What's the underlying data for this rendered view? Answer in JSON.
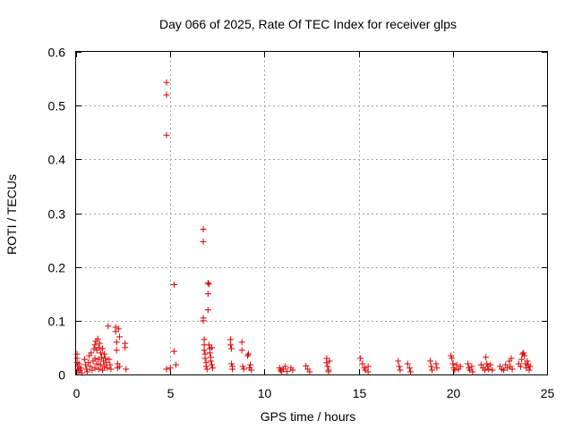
{
  "chart_data": {
    "type": "scatter",
    "title": "Day 066 of 2025, Rate Of TEC Index for receiver glps",
    "xlabel": "GPS time / hours",
    "ylabel": "ROTI / TECUs",
    "xlim": [
      0,
      25
    ],
    "ylim": [
      0,
      0.6
    ],
    "xticks": [
      0,
      5,
      10,
      15,
      20,
      25
    ],
    "xtick_labels": [
      "0",
      "5",
      "10",
      "15",
      "20",
      "25"
    ],
    "yticks": [
      0,
      0.1,
      0.2,
      0.3,
      0.4,
      0.5,
      0.6
    ],
    "ytick_labels": [
      "0",
      "0.1",
      "0.2",
      "0.3",
      "0.4",
      "0.5",
      "0.6"
    ],
    "grid": true,
    "marker": "plus",
    "color": "#dd0000",
    "series": [
      {
        "points": [
          [
            0.05,
            0.038
          ],
          [
            0.05,
            0.03
          ],
          [
            0.05,
            0.022
          ],
          [
            0.08,
            0.015
          ],
          [
            0.1,
            0.01
          ],
          [
            0.1,
            0.005
          ],
          [
            0.15,
            0.02
          ],
          [
            0.2,
            0.008
          ],
          [
            0.25,
            0.012
          ],
          [
            0.3,
            0.003
          ],
          [
            0.45,
            0.028
          ],
          [
            0.5,
            0.018
          ],
          [
            0.55,
            0.01
          ],
          [
            0.6,
            0.005
          ],
          [
            0.65,
            0.022
          ],
          [
            0.7,
            0.035
          ],
          [
            0.75,
            0.015
          ],
          [
            0.8,
            0.04
          ],
          [
            0.85,
            0.008
          ],
          [
            0.9,
            0.025
          ],
          [
            0.95,
            0.048
          ],
          [
            1.0,
            0.055
          ],
          [
            1.0,
            0.03
          ],
          [
            1.0,
            0.012
          ],
          [
            1.05,
            0.062
          ],
          [
            1.1,
            0.045
          ],
          [
            1.1,
            0.02
          ],
          [
            1.15,
            0.066
          ],
          [
            1.2,
            0.05
          ],
          [
            1.2,
            0.028
          ],
          [
            1.2,
            0.01
          ],
          [
            1.25,
            0.058
          ],
          [
            1.3,
            0.04
          ],
          [
            1.3,
            0.018
          ],
          [
            1.35,
            0.032
          ],
          [
            1.4,
            0.048
          ],
          [
            1.4,
            0.008
          ],
          [
            1.45,
            0.025
          ],
          [
            1.5,
            0.038
          ],
          [
            1.5,
            0.015
          ],
          [
            1.55,
            0.03
          ],
          [
            1.6,
            0.022
          ],
          [
            1.65,
            0.012
          ],
          [
            1.7,
            0.09
          ],
          [
            1.75,
            0.028
          ],
          [
            1.8,
            0.018
          ],
          [
            1.85,
            0.01
          ],
          [
            2.1,
            0.088
          ],
          [
            2.1,
            0.08
          ],
          [
            2.15,
            0.06
          ],
          [
            2.15,
            0.045
          ],
          [
            2.2,
            0.02
          ],
          [
            2.2,
            0.012
          ],
          [
            2.25,
            0.085
          ],
          [
            2.3,
            0.07
          ],
          [
            2.3,
            0.015
          ],
          [
            2.6,
            0.058
          ],
          [
            2.6,
            0.05
          ],
          [
            2.65,
            0.01
          ],
          [
            4.8,
            0.543
          ],
          [
            4.8,
            0.52
          ],
          [
            4.8,
            0.445
          ],
          [
            4.8,
            0.01
          ],
          [
            5.0,
            0.012
          ],
          [
            5.2,
            0.167
          ],
          [
            5.2,
            0.043
          ],
          [
            5.3,
            0.018
          ],
          [
            6.75,
            0.27
          ],
          [
            6.75,
            0.247
          ],
          [
            6.75,
            0.105
          ],
          [
            6.75,
            0.1
          ],
          [
            6.8,
            0.065
          ],
          [
            6.8,
            0.055
          ],
          [
            6.8,
            0.045
          ],
          [
            6.85,
            0.038
          ],
          [
            6.85,
            0.03
          ],
          [
            6.9,
            0.022
          ],
          [
            6.9,
            0.015
          ],
          [
            6.95,
            0.01
          ],
          [
            7.0,
            0.17
          ],
          [
            7.0,
            0.15
          ],
          [
            7.0,
            0.12
          ],
          [
            7.05,
            0.168
          ],
          [
            7.05,
            0.055
          ],
          [
            7.1,
            0.048
          ],
          [
            7.1,
            0.04
          ],
          [
            7.15,
            0.032
          ],
          [
            7.15,
            0.025
          ],
          [
            7.2,
            0.05
          ],
          [
            7.2,
            0.018
          ],
          [
            7.25,
            0.012
          ],
          [
            8.2,
            0.065
          ],
          [
            8.2,
            0.055
          ],
          [
            8.25,
            0.048
          ],
          [
            8.25,
            0.02
          ],
          [
            8.3,
            0.015
          ],
          [
            8.3,
            0.01
          ],
          [
            8.8,
            0.06
          ],
          [
            8.8,
            0.045
          ],
          [
            8.85,
            0.015
          ],
          [
            8.9,
            0.01
          ],
          [
            9.1,
            0.035
          ],
          [
            9.15,
            0.038
          ],
          [
            9.2,
            0.012
          ],
          [
            9.25,
            0.018
          ],
          [
            9.3,
            0.008
          ],
          [
            10.8,
            0.012
          ],
          [
            10.85,
            0.008
          ],
          [
            10.9,
            0.005
          ],
          [
            11.0,
            0.01
          ],
          [
            11.1,
            0.015
          ],
          [
            11.2,
            0.006
          ],
          [
            11.4,
            0.012
          ],
          [
            11.5,
            0.008
          ],
          [
            12.2,
            0.016
          ],
          [
            12.3,
            0.01
          ],
          [
            12.4,
            0.005
          ],
          [
            13.3,
            0.03
          ],
          [
            13.3,
            0.022
          ],
          [
            13.35,
            0.015
          ],
          [
            13.4,
            0.008
          ],
          [
            13.4,
            0.005
          ],
          [
            13.45,
            0.025
          ],
          [
            15.1,
            0.03
          ],
          [
            15.2,
            0.02
          ],
          [
            15.3,
            0.012
          ],
          [
            15.35,
            0.008
          ],
          [
            15.5,
            0.015
          ],
          [
            15.5,
            0.005
          ],
          [
            17.1,
            0.025
          ],
          [
            17.15,
            0.015
          ],
          [
            17.2,
            0.008
          ],
          [
            17.6,
            0.02
          ],
          [
            17.7,
            0.012
          ],
          [
            17.75,
            0.005
          ],
          [
            18.8,
            0.025
          ],
          [
            18.85,
            0.015
          ],
          [
            18.9,
            0.008
          ],
          [
            19.1,
            0.02
          ],
          [
            19.15,
            0.012
          ],
          [
            19.9,
            0.035
          ],
          [
            19.95,
            0.03
          ],
          [
            20.0,
            0.02
          ],
          [
            20.05,
            0.012
          ],
          [
            20.1,
            0.008
          ],
          [
            20.2,
            0.018
          ],
          [
            20.3,
            0.01
          ],
          [
            20.4,
            0.015
          ],
          [
            20.8,
            0.02
          ],
          [
            20.85,
            0.012
          ],
          [
            20.9,
            0.008
          ],
          [
            21.0,
            0.015
          ],
          [
            21.05,
            0.005
          ],
          [
            21.5,
            0.018
          ],
          [
            21.6,
            0.012
          ],
          [
            21.7,
            0.008
          ],
          [
            21.75,
            0.032
          ],
          [
            21.8,
            0.02
          ],
          [
            21.85,
            0.015
          ],
          [
            21.9,
            0.01
          ],
          [
            22.0,
            0.018
          ],
          [
            22.1,
            0.008
          ],
          [
            22.5,
            0.015
          ],
          [
            22.6,
            0.01
          ],
          [
            22.7,
            0.008
          ],
          [
            22.8,
            0.018
          ],
          [
            22.9,
            0.012
          ],
          [
            23.0,
            0.025
          ],
          [
            23.05,
            0.015
          ],
          [
            23.1,
            0.03
          ],
          [
            23.15,
            0.01
          ],
          [
            23.5,
            0.02
          ],
          [
            23.6,
            0.015
          ],
          [
            23.65,
            0.028
          ],
          [
            23.7,
            0.038
          ],
          [
            23.75,
            0.04
          ],
          [
            23.8,
            0.035
          ],
          [
            23.85,
            0.02
          ],
          [
            23.9,
            0.012
          ],
          [
            23.95,
            0.025
          ],
          [
            24.0,
            0.018
          ],
          [
            24.05,
            0.008
          ],
          [
            24.1,
            0.015
          ]
        ]
      }
    ]
  }
}
